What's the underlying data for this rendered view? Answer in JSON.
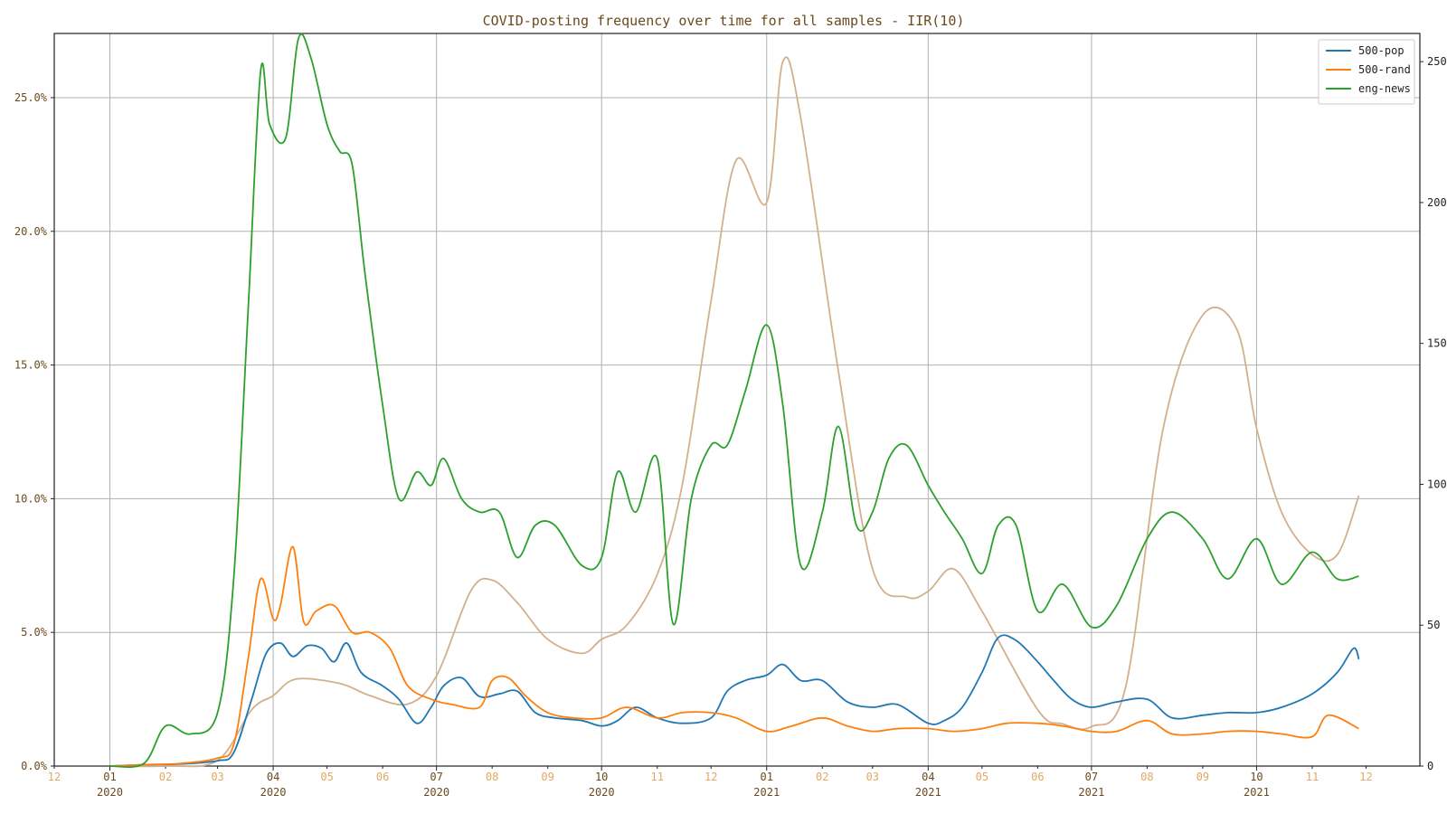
{
  "chart_data": {
    "type": "line",
    "title": "COVID-posting frequency over time for all samples - IIR(10)",
    "x_range": [
      "2019-12-01",
      "2021-12-31"
    ],
    "y_range": [
      0,
      0.274
    ],
    "y2_range": [
      0,
      260
    ],
    "y_ticks": [
      "0.0%",
      "5.0%",
      "10.0%",
      "15.0%",
      "20.0%",
      "25.0%"
    ],
    "y2_ticks": [
      "0",
      "50",
      "100",
      "150",
      "200",
      "250"
    ],
    "x_major_ticks": [
      {
        "month": "01",
        "year": "2020"
      },
      {
        "month": "04",
        "year": "2020"
      },
      {
        "month": "07",
        "year": "2020"
      },
      {
        "month": "10",
        "year": "2020"
      },
      {
        "month": "01",
        "year": "2021"
      },
      {
        "month": "04",
        "year": "2021"
      },
      {
        "month": "07",
        "year": "2021"
      },
      {
        "month": "10",
        "year": "2021"
      }
    ],
    "x_minor_ticks": [
      "12",
      "02",
      "03",
      "05",
      "06",
      "08",
      "09",
      "11",
      "12",
      "02",
      "03",
      "05",
      "06",
      "08",
      "09",
      "11",
      "12"
    ],
    "grid": true,
    "legend_position": "top-right",
    "series": [
      {
        "name": "500-pop",
        "color": "#1f77b4",
        "axis": "left",
        "x": [
          "2020-01-01",
          "2020-01-20",
          "2020-02-10",
          "2020-03-01",
          "2020-03-10",
          "2020-03-20",
          "2020-03-28",
          "2020-04-05",
          "2020-04-12",
          "2020-04-20",
          "2020-04-28",
          "2020-05-05",
          "2020-05-12",
          "2020-05-20",
          "2020-06-01",
          "2020-06-10",
          "2020-06-20",
          "2020-06-28",
          "2020-07-05",
          "2020-07-15",
          "2020-07-25",
          "2020-08-05",
          "2020-08-15",
          "2020-08-25",
          "2020-09-05",
          "2020-09-20",
          "2020-10-01",
          "2020-10-10",
          "2020-10-20",
          "2020-11-01",
          "2020-11-15",
          "2020-12-01",
          "2020-12-10",
          "2020-12-20",
          "2021-01-01",
          "2021-01-10",
          "2021-01-20",
          "2021-02-01",
          "2021-02-15",
          "2021-03-01",
          "2021-03-15",
          "2021-04-01",
          "2021-04-10",
          "2021-04-20",
          "2021-05-01",
          "2021-05-10",
          "2021-05-20",
          "2021-06-01",
          "2021-06-10",
          "2021-06-20",
          "2021-07-01",
          "2021-07-15",
          "2021-08-01",
          "2021-08-15",
          "2021-09-01",
          "2021-09-15",
          "2021-10-01",
          "2021-10-15",
          "2021-11-01",
          "2021-11-15",
          "2021-11-24",
          "2021-11-27"
        ],
        "y": [
          0,
          0.0005,
          0.0008,
          0.002,
          0.005,
          0.025,
          0.042,
          0.046,
          0.041,
          0.045,
          0.044,
          0.039,
          0.046,
          0.035,
          0.03,
          0.025,
          0.016,
          0.022,
          0.03,
          0.033,
          0.026,
          0.027,
          0.028,
          0.02,
          0.018,
          0.017,
          0.015,
          0.017,
          0.022,
          0.018,
          0.016,
          0.018,
          0.028,
          0.032,
          0.034,
          0.038,
          0.032,
          0.032,
          0.024,
          0.022,
          0.023,
          0.016,
          0.017,
          0.022,
          0.035,
          0.048,
          0.047,
          0.039,
          0.032,
          0.025,
          0.022,
          0.024,
          0.025,
          0.018,
          0.019,
          0.02,
          0.02,
          0.022,
          0.027,
          0.035,
          0.044,
          0.04
        ]
      },
      {
        "name": "500-rand",
        "color": "#ff7f0e",
        "axis": "left",
        "x": [
          "2020-01-01",
          "2020-01-20",
          "2020-02-10",
          "2020-03-01",
          "2020-03-10",
          "2020-03-18",
          "2020-03-25",
          "2020-04-01",
          "2020-04-05",
          "2020-04-12",
          "2020-04-18",
          "2020-04-25",
          "2020-05-05",
          "2020-05-15",
          "2020-05-25",
          "2020-06-05",
          "2020-06-15",
          "2020-06-28",
          "2020-07-10",
          "2020-07-25",
          "2020-08-01",
          "2020-08-10",
          "2020-08-20",
          "2020-09-01",
          "2020-09-15",
          "2020-10-01",
          "2020-10-15",
          "2020-11-01",
          "2020-11-15",
          "2020-12-01",
          "2020-12-15",
          "2021-01-01",
          "2021-01-15",
          "2021-02-01",
          "2021-02-15",
          "2021-03-01",
          "2021-03-15",
          "2021-04-01",
          "2021-04-15",
          "2021-05-01",
          "2021-05-15",
          "2021-06-01",
          "2021-06-15",
          "2021-07-01",
          "2021-07-15",
          "2021-08-01",
          "2021-08-15",
          "2021-09-01",
          "2021-09-15",
          "2021-10-01",
          "2021-10-15",
          "2021-11-01",
          "2021-11-10",
          "2021-11-27"
        ],
        "y": [
          0,
          0.0005,
          0.001,
          0.003,
          0.008,
          0.04,
          0.07,
          0.055,
          0.06,
          0.082,
          0.054,
          0.058,
          0.06,
          0.05,
          0.05,
          0.044,
          0.03,
          0.025,
          0.023,
          0.022,
          0.032,
          0.033,
          0.026,
          0.02,
          0.018,
          0.018,
          0.022,
          0.018,
          0.02,
          0.02,
          0.018,
          0.013,
          0.015,
          0.018,
          0.015,
          0.013,
          0.014,
          0.014,
          0.013,
          0.014,
          0.016,
          0.016,
          0.015,
          0.013,
          0.013,
          0.017,
          0.012,
          0.012,
          0.013,
          0.013,
          0.012,
          0.011,
          0.019,
          0.014
        ]
      },
      {
        "name": "eng-news",
        "color": "#2ca02c",
        "axis": "left",
        "x": [
          "2020-01-01",
          "2020-01-20",
          "2020-02-01",
          "2020-02-15",
          "2020-03-01",
          "2020-03-10",
          "2020-03-18",
          "2020-03-25",
          "2020-03-30",
          "2020-04-08",
          "2020-04-15",
          "2020-04-22",
          "2020-05-01",
          "2020-05-08",
          "2020-05-15",
          "2020-05-22",
          "2020-06-01",
          "2020-06-10",
          "2020-06-20",
          "2020-06-28",
          "2020-07-05",
          "2020-07-15",
          "2020-07-25",
          "2020-08-05",
          "2020-08-15",
          "2020-08-25",
          "2020-09-05",
          "2020-09-20",
          "2020-10-01",
          "2020-10-10",
          "2020-10-20",
          "2020-11-01",
          "2020-11-10",
          "2020-11-20",
          "2020-12-01",
          "2020-12-10",
          "2020-12-20",
          "2021-01-01",
          "2021-01-10",
          "2021-01-20",
          "2021-02-01",
          "2021-02-10",
          "2021-02-20",
          "2021-03-01",
          "2021-03-10",
          "2021-03-20",
          "2021-04-01",
          "2021-04-10",
          "2021-04-20",
          "2021-05-01",
          "2021-05-10",
          "2021-05-20",
          "2021-06-01",
          "2021-06-15",
          "2021-07-01",
          "2021-07-15",
          "2021-08-01",
          "2021-08-15",
          "2021-09-01",
          "2021-09-15",
          "2021-10-01",
          "2021-10-15",
          "2021-11-01",
          "2021-11-15",
          "2021-11-27"
        ],
        "y": [
          0,
          0.001,
          0.015,
          0.012,
          0.02,
          0.07,
          0.17,
          0.26,
          0.24,
          0.235,
          0.272,
          0.265,
          0.24,
          0.23,
          0.225,
          0.185,
          0.135,
          0.1,
          0.11,
          0.105,
          0.115,
          0.1,
          0.095,
          0.095,
          0.078,
          0.09,
          0.09,
          0.075,
          0.078,
          0.11,
          0.095,
          0.115,
          0.053,
          0.1,
          0.12,
          0.12,
          0.14,
          0.165,
          0.135,
          0.075,
          0.095,
          0.127,
          0.09,
          0.095,
          0.115,
          0.12,
          0.105,
          0.095,
          0.085,
          0.072,
          0.09,
          0.09,
          0.058,
          0.068,
          0.052,
          0.06,
          0.085,
          0.095,
          0.085,
          0.07,
          0.085,
          0.068,
          0.08,
          0.07,
          0.071
        ]
      },
      {
        "name": "",
        "color": "#d2b08c",
        "axis": "right",
        "x": [
          "2020-01-01",
          "2020-02-01",
          "2020-03-01",
          "2020-03-20",
          "2020-04-01",
          "2020-04-10",
          "2020-04-20",
          "2020-05-10",
          "2020-05-25",
          "2020-06-15",
          "2020-07-01",
          "2020-07-20",
          "2020-08-01",
          "2020-08-15",
          "2020-09-01",
          "2020-09-20",
          "2020-10-01",
          "2020-10-15",
          "2020-11-01",
          "2020-11-15",
          "2020-12-01",
          "2020-12-15",
          "2021-01-01",
          "2021-01-10",
          "2021-01-20",
          "2021-02-10",
          "2021-03-01",
          "2021-03-20",
          "2021-04-01",
          "2021-04-15",
          "2021-05-01",
          "2021-06-01",
          "2021-06-15",
          "2021-07-01",
          "2021-07-20",
          "2021-08-10",
          "2021-09-01",
          "2021-09-20",
          "2021-10-01",
          "2021-10-15",
          "2021-11-01",
          "2021-11-15",
          "2021-11-27"
        ],
        "y": [
          0,
          0,
          2,
          20,
          25,
          30,
          31,
          29,
          25,
          22,
          32,
          62,
          66,
          58,
          45,
          40,
          45,
          50,
          68,
          100,
          165,
          215,
          200,
          250,
          230,
          140,
          70,
          60,
          62,
          70,
          55,
          20,
          15,
          14,
          28,
          120,
          160,
          155,
          120,
          90,
          75,
          75,
          96
        ]
      }
    ]
  }
}
